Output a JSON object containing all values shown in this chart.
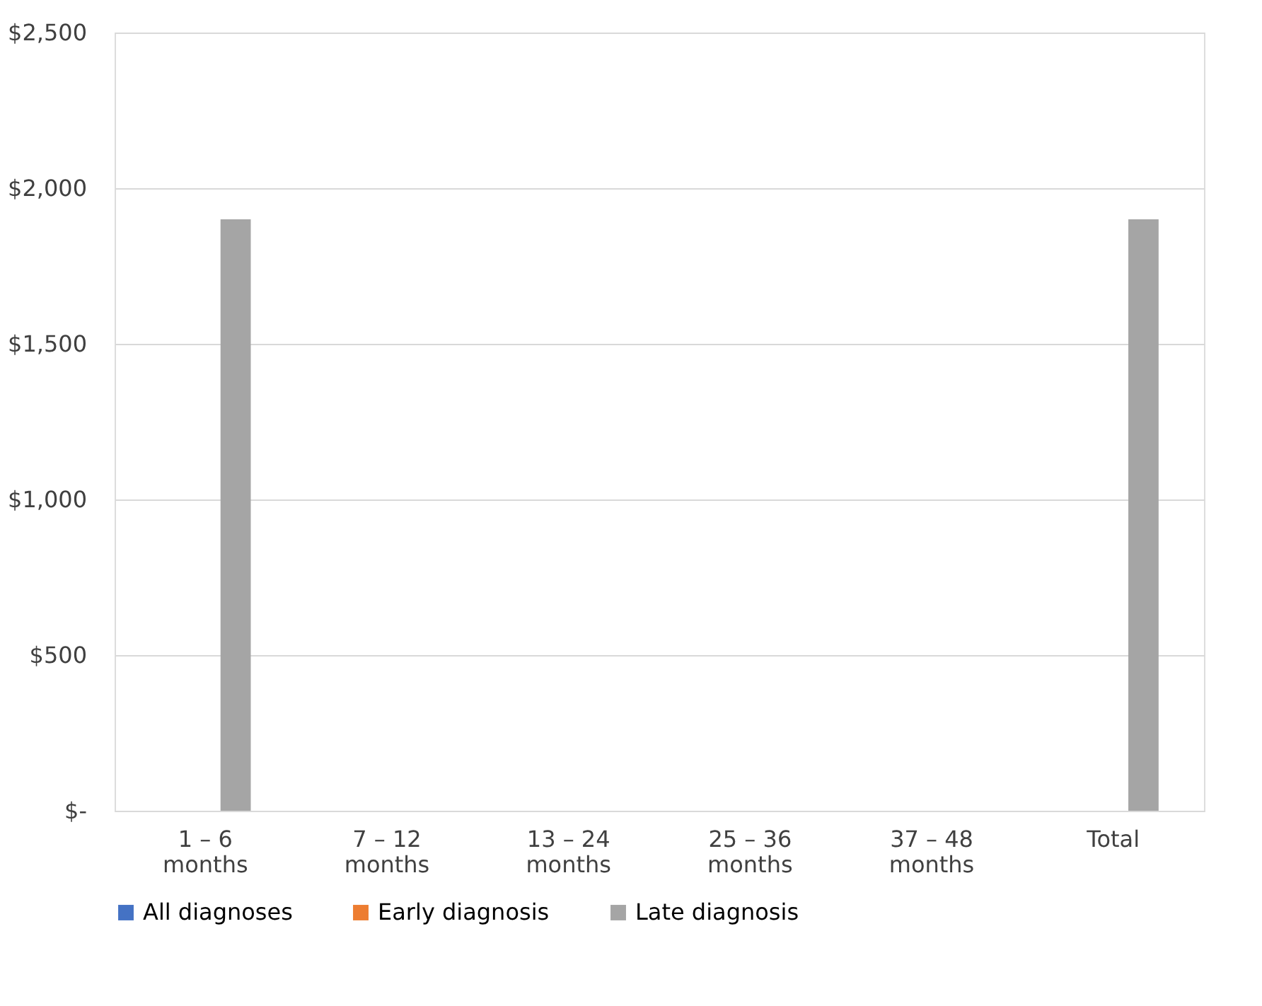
{
  "chart_data": {
    "type": "bar",
    "categories": [
      "1 – 6 months",
      "7 – 12 months",
      "13 – 24 months",
      "25 – 36 months",
      "37 – 48 months",
      "Total"
    ],
    "series": [
      {
        "name": "All diagnoses",
        "color": "#4472c4",
        "values": [
          null,
          null,
          null,
          null,
          null,
          null
        ]
      },
      {
        "name": "Early diagnosis",
        "color": "#ed7d31",
        "values": [
          null,
          null,
          null,
          null,
          null,
          null
        ]
      },
      {
        "name": "Late diagnosis",
        "color": "#a5a5a5",
        "values": [
          1900,
          null,
          null,
          null,
          null,
          1900
        ]
      }
    ],
    "ylim": [
      0,
      2500
    ],
    "yticks": [
      {
        "value": 0,
        "label": "$-"
      },
      {
        "value": 500,
        "label": "$500"
      },
      {
        "value": 1000,
        "label": "$1,000"
      },
      {
        "value": 1500,
        "label": "$1,500"
      },
      {
        "value": 2000,
        "label": "$2,000"
      },
      {
        "value": 2500,
        "label": "$2,500"
      }
    ],
    "grid": "y",
    "legend": "bottom"
  }
}
